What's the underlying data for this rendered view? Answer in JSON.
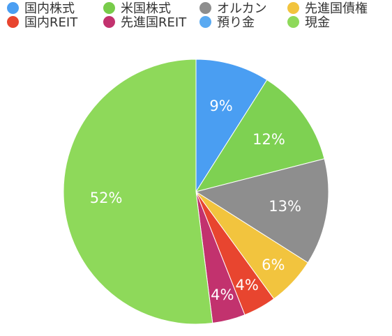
{
  "chart_data": {
    "type": "pie",
    "title": "",
    "legend_placement": "top",
    "legend": [
      {
        "name": "国内株式",
        "color": "#4a9ef2"
      },
      {
        "name": "米国株式",
        "color": "#78cc4a"
      },
      {
        "name": "オルカン",
        "color": "#8e8e8e"
      },
      {
        "name": "先進国債権",
        "color": "#f2c43e"
      },
      {
        "name": "国内REIT",
        "color": "#e8452f"
      },
      {
        "name": "先進国REIT",
        "color": "#c2326e"
      },
      {
        "name": "預り金",
        "color": "#5aaaf2"
      },
      {
        "name": "現金",
        "color": "#8ed95a"
      }
    ],
    "slices": [
      {
        "name": "国内株式",
        "value": 9,
        "label": "9%",
        "color": "#4a9ef2"
      },
      {
        "name": "米国株式",
        "value": 12,
        "label": "12%",
        "color": "#7ed152"
      },
      {
        "name": "オルカン",
        "value": 13,
        "label": "13%",
        "color": "#8e8e8e"
      },
      {
        "name": "先進国債権",
        "value": 6,
        "label": "6%",
        "color": "#f2c43e"
      },
      {
        "name": "国内REIT",
        "value": 4,
        "label": "4%",
        "color": "#e8452f"
      },
      {
        "name": "先進国REIT",
        "value": 4,
        "label": "4%",
        "color": "#c2326e"
      },
      {
        "name": "現金",
        "value": 52,
        "label": "52%",
        "color": "#8ed95a"
      }
    ]
  }
}
